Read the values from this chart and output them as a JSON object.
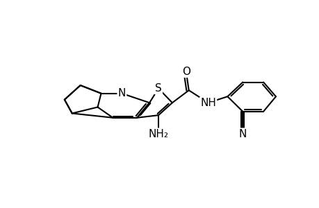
{
  "background_color": "#ffffff",
  "line_color": "#000000",
  "line_width": 1.5,
  "font_size_atoms": 10,
  "figsize": [
    4.6,
    3.0
  ],
  "dpi": 100,
  "xlim": [
    -4.0,
    5.5
  ],
  "ylim": [
    -2.8,
    2.8
  ]
}
